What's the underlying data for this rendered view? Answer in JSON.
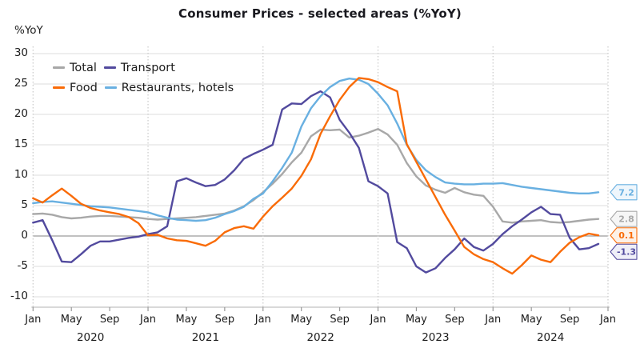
{
  "title": "Consumer Prices - selected areas (%YoY)",
  "y_axis_unit": "%YoY",
  "chart_data": {
    "type": "line",
    "title": "Consumer Prices - selected areas (%YoY)",
    "ylabel": "%YoY",
    "ylim": [
      -10,
      30
    ],
    "y_ticks": [
      30,
      25,
      20,
      15,
      10,
      5,
      0,
      -5,
      -10
    ],
    "grid": "horizontal solid gray; vertical dotted at each January; zero line darker",
    "legend_position": "top-left inside plot",
    "x_axis": {
      "tick_labels_per_year": [
        "Jan",
        "May",
        "Sep"
      ],
      "final_tick_label": "Jan",
      "years": [
        "2020",
        "2021",
        "2022",
        "2023",
        "2024"
      ]
    },
    "months": [
      "2020-01",
      "2020-02",
      "2020-03",
      "2020-04",
      "2020-05",
      "2020-06",
      "2020-07",
      "2020-08",
      "2020-09",
      "2020-10",
      "2020-11",
      "2020-12",
      "2021-01",
      "2021-02",
      "2021-03",
      "2021-04",
      "2021-05",
      "2021-06",
      "2021-07",
      "2021-08",
      "2021-09",
      "2021-10",
      "2021-11",
      "2021-12",
      "2022-01",
      "2022-02",
      "2022-03",
      "2022-04",
      "2022-05",
      "2022-06",
      "2022-07",
      "2022-08",
      "2022-09",
      "2022-10",
      "2022-11",
      "2022-12",
      "2023-01",
      "2023-02",
      "2023-03",
      "2023-04",
      "2023-05",
      "2023-06",
      "2023-07",
      "2023-08",
      "2023-09",
      "2023-10",
      "2023-11",
      "2023-12",
      "2024-01",
      "2024-02",
      "2024-03",
      "2024-04",
      "2024-05",
      "2024-06",
      "2024-07",
      "2024-08",
      "2024-09",
      "2024-10",
      "2024-11",
      "2024-12"
    ],
    "series": [
      {
        "name": "Total",
        "color": "#A8A8A8",
        "callout_bg": "#F6F6F6",
        "end_label": "2.8",
        "values": [
          3.6,
          3.7,
          3.5,
          3.1,
          2.9,
          3.0,
          3.2,
          3.3,
          3.3,
          3.2,
          3.1,
          3.0,
          2.8,
          2.7,
          2.8,
          2.9,
          3.0,
          3.1,
          3.3,
          3.5,
          3.7,
          4.2,
          4.9,
          5.9,
          7.2,
          8.6,
          10.2,
          12.1,
          13.7,
          16.4,
          17.5,
          17.4,
          17.5,
          16.2,
          16.5,
          17.0,
          17.6,
          16.7,
          15.0,
          12.0,
          9.8,
          8.3,
          7.6,
          7.1,
          7.9,
          7.2,
          6.8,
          6.6,
          4.8,
          2.4,
          2.2,
          2.4,
          2.5,
          2.6,
          2.3,
          2.2,
          2.3,
          2.5,
          2.7,
          2.8
        ]
      },
      {
        "name": "Transport",
        "color": "#524A9E",
        "callout_bg": "#EFEFF8",
        "end_label": "-1.3",
        "values": [
          2.2,
          2.6,
          -0.7,
          -4.2,
          -4.3,
          -3.0,
          -1.6,
          -0.9,
          -0.9,
          -0.6,
          -0.3,
          -0.1,
          0.3,
          0.6,
          1.6,
          9.0,
          9.5,
          8.8,
          8.2,
          8.4,
          9.3,
          10.8,
          12.7,
          13.5,
          14.2,
          15.0,
          20.8,
          21.8,
          21.7,
          23.0,
          23.8,
          22.8,
          19.1,
          17.0,
          14.5,
          9.0,
          8.2,
          7.0,
          -1.0,
          -2.0,
          -5.0,
          -6.0,
          -5.3,
          -3.6,
          -2.2,
          -0.4,
          -1.8,
          -2.4,
          -1.3,
          0.3,
          1.6,
          2.7,
          3.9,
          4.8,
          3.6,
          3.5,
          -0.3,
          -2.2,
          -2.0,
          -1.3
        ]
      },
      {
        "name": "Food",
        "color": "#F96B07",
        "callout_bg": "#FDF1E7",
        "end_label": "0.1",
        "values": [
          6.2,
          5.5,
          6.7,
          7.8,
          6.6,
          5.3,
          4.6,
          4.2,
          3.9,
          3.6,
          3.1,
          2.1,
          0.1,
          0.2,
          -0.4,
          -0.7,
          -0.8,
          -1.2,
          -1.6,
          -0.8,
          0.6,
          1.3,
          1.6,
          1.2,
          3.2,
          4.9,
          6.3,
          7.8,
          9.9,
          12.6,
          16.8,
          19.7,
          22.4,
          24.5,
          26.0,
          25.8,
          25.3,
          24.5,
          23.8,
          15.1,
          12.2,
          9.3,
          6.4,
          3.5,
          0.9,
          -1.8,
          -3.0,
          -3.8,
          -4.3,
          -5.3,
          -6.2,
          -4.8,
          -3.2,
          -3.9,
          -4.3,
          -2.6,
          -1.1,
          -0.2,
          0.4,
          0.1
        ]
      },
      {
        "name": "Restaurants, hotels",
        "color": "#69B0E1",
        "callout_bg": "#EEF6FC",
        "end_label": "7.2",
        "values": [
          5.4,
          5.6,
          5.7,
          5.5,
          5.3,
          5.1,
          4.9,
          4.8,
          4.7,
          4.5,
          4.3,
          4.1,
          3.9,
          3.4,
          3.0,
          2.7,
          2.6,
          2.5,
          2.6,
          3.0,
          3.6,
          4.1,
          4.8,
          6.1,
          7.0,
          9.0,
          11.2,
          13.7,
          18.0,
          21.0,
          23.0,
          24.5,
          25.5,
          25.9,
          25.7,
          25.0,
          23.4,
          21.5,
          18.5,
          15.0,
          12.5,
          10.8,
          9.7,
          8.8,
          8.6,
          8.5,
          8.5,
          8.6,
          8.6,
          8.7,
          8.4,
          8.1,
          7.9,
          7.7,
          7.5,
          7.3,
          7.1,
          7.0,
          7.0,
          7.2
        ]
      }
    ],
    "colors": {
      "gridline": "#E4E4E4",
      "zero_line": "#9C9C9C",
      "dotted_vertical": "#C9C9C9",
      "axis_line": "#C2C2C2",
      "tick_mark": "#999999",
      "text": "#1C1C1C"
    }
  }
}
